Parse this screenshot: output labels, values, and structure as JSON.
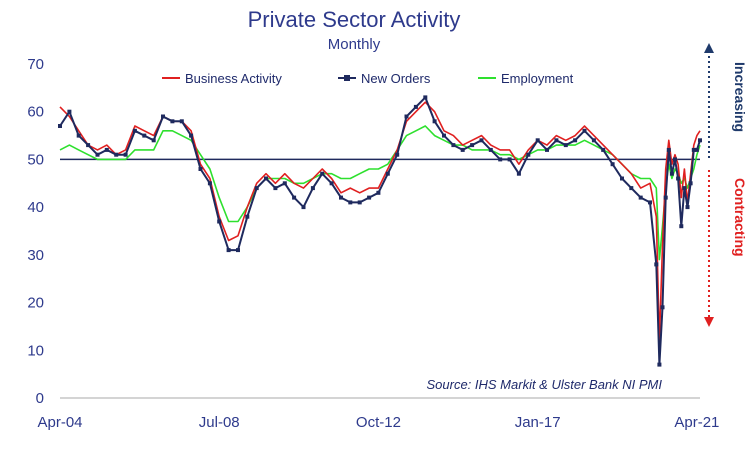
{
  "chart_data": {
    "type": "line",
    "title": "Private Sector Activity",
    "subtitle": "Monthly",
    "source": "Source: IHS Markit & Ulster Bank NI PMI",
    "x_tick_labels": [
      "Apr-04",
      "Jul-08",
      "Oct-12",
      "Jan-17",
      "Apr-21"
    ],
    "y_ticks": [
      0,
      10,
      20,
      30,
      40,
      50,
      60,
      70
    ],
    "ylim": [
      0,
      70
    ],
    "x_range": [
      "Apr-04",
      "May-21"
    ],
    "reference_line": 50,
    "grid": false,
    "legend_placement": "top",
    "annotations": {
      "up": "Increasing",
      "down": "Contracting"
    },
    "colors": {
      "axis": "#2e3a8c",
      "up": "#1f3a6b",
      "down": "#e02020"
    },
    "series": [
      {
        "name": "Business Activity",
        "color": "#e02020",
        "marker": "none",
        "x": [
          "Apr-04",
          "Jul-04",
          "Oct-04",
          "Jan-05",
          "Apr-05",
          "Jul-05",
          "Oct-05",
          "Jan-06",
          "Apr-06",
          "Jul-06",
          "Oct-06",
          "Jan-07",
          "Apr-07",
          "Jul-07",
          "Oct-07",
          "Jan-08",
          "Apr-08",
          "Jul-08",
          "Oct-08",
          "Jan-09",
          "Apr-09",
          "Jul-09",
          "Oct-09",
          "Jan-10",
          "Apr-10",
          "Jul-10",
          "Oct-10",
          "Jan-11",
          "Apr-11",
          "Jul-11",
          "Oct-11",
          "Jan-12",
          "Apr-12",
          "Jul-12",
          "Oct-12",
          "Jan-13",
          "Apr-13",
          "Jul-13",
          "Oct-13",
          "Jan-14",
          "Apr-14",
          "Jul-14",
          "Oct-14",
          "Jan-15",
          "Apr-15",
          "Jul-15",
          "Oct-15",
          "Jan-16",
          "Apr-16",
          "Jul-16",
          "Oct-16",
          "Jan-17",
          "Apr-17",
          "Jul-17",
          "Oct-17",
          "Jan-18",
          "Apr-18",
          "Jul-18",
          "Oct-18",
          "Jan-19",
          "Apr-19",
          "Jul-19",
          "Oct-19",
          "Jan-20",
          "Mar-20",
          "Apr-20",
          "May-20",
          "Jun-20",
          "Jul-20",
          "Aug-20",
          "Sep-20",
          "Oct-20",
          "Nov-20",
          "Dec-20",
          "Jan-21",
          "Feb-21",
          "Mar-21",
          "Apr-21",
          "May-21"
        ],
        "values": [
          61,
          59,
          56,
          53,
          52,
          53,
          51,
          52,
          57,
          56,
          55,
          59,
          58,
          58,
          56,
          49,
          46,
          38,
          33,
          34,
          40,
          45,
          47,
          45,
          47,
          45,
          44,
          46,
          48,
          46,
          43,
          44,
          43,
          44,
          44,
          48,
          52,
          58,
          60,
          62,
          60,
          56,
          55,
          53,
          54,
          55,
          53,
          52,
          52,
          49,
          52,
          54,
          53,
          55,
          54,
          55,
          57,
          55,
          53,
          51,
          49,
          47,
          44,
          45,
          38,
          12,
          32,
          48,
          54,
          49,
          51,
          49,
          42,
          48,
          41,
          47,
          53,
          55,
          56
        ]
      },
      {
        "name": "New Orders",
        "color": "#1f2a5e",
        "marker": "square",
        "x": [
          "Apr-04",
          "Jul-04",
          "Oct-04",
          "Jan-05",
          "Apr-05",
          "Jul-05",
          "Oct-05",
          "Jan-06",
          "Apr-06",
          "Jul-06",
          "Oct-06",
          "Jan-07",
          "Apr-07",
          "Jul-07",
          "Oct-07",
          "Jan-08",
          "Apr-08",
          "Jul-08",
          "Oct-08",
          "Jan-09",
          "Apr-09",
          "Jul-09",
          "Oct-09",
          "Jan-10",
          "Apr-10",
          "Jul-10",
          "Oct-10",
          "Jan-11",
          "Apr-11",
          "Jul-11",
          "Oct-11",
          "Jan-12",
          "Apr-12",
          "Jul-12",
          "Oct-12",
          "Jan-13",
          "Apr-13",
          "Jul-13",
          "Oct-13",
          "Jan-14",
          "Apr-14",
          "Jul-14",
          "Oct-14",
          "Jan-15",
          "Apr-15",
          "Jul-15",
          "Oct-15",
          "Jan-16",
          "Apr-16",
          "Jul-16",
          "Oct-16",
          "Jan-17",
          "Apr-17",
          "Jul-17",
          "Oct-17",
          "Jan-18",
          "Apr-18",
          "Jul-18",
          "Oct-18",
          "Jan-19",
          "Apr-19",
          "Jul-19",
          "Oct-19",
          "Jan-20",
          "Mar-20",
          "Apr-20",
          "May-20",
          "Jun-20",
          "Jul-20",
          "Aug-20",
          "Sep-20",
          "Oct-20",
          "Nov-20",
          "Dec-20",
          "Jan-21",
          "Feb-21",
          "Mar-21",
          "Apr-21",
          "May-21"
        ],
        "values": [
          57,
          60,
          55,
          53,
          51,
          52,
          51,
          51,
          56,
          55,
          54,
          59,
          58,
          58,
          55,
          48,
          45,
          37,
          31,
          31,
          38,
          44,
          46,
          44,
          45,
          42,
          40,
          44,
          47,
          45,
          42,
          41,
          41,
          42,
          43,
          47,
          51,
          59,
          61,
          63,
          58,
          55,
          53,
          52,
          53,
          54,
          52,
          50,
          50,
          47,
          51,
          54,
          52,
          54,
          53,
          54,
          56,
          54,
          52,
          49,
          46,
          44,
          42,
          41,
          28,
          7,
          19,
          42,
          52,
          47,
          50,
          46,
          36,
          44,
          40,
          45,
          52,
          52,
          54
        ]
      },
      {
        "name": "Employment",
        "color": "#2ee02e",
        "marker": "none",
        "x": [
          "Apr-04",
          "Jul-04",
          "Oct-04",
          "Jan-05",
          "Apr-05",
          "Jul-05",
          "Oct-05",
          "Jan-06",
          "Apr-06",
          "Jul-06",
          "Oct-06",
          "Jan-07",
          "Apr-07",
          "Jul-07",
          "Oct-07",
          "Jan-08",
          "Apr-08",
          "Jul-08",
          "Oct-08",
          "Jan-09",
          "Apr-09",
          "Jul-09",
          "Oct-09",
          "Jan-10",
          "Apr-10",
          "Jul-10",
          "Oct-10",
          "Jan-11",
          "Apr-11",
          "Jul-11",
          "Oct-11",
          "Jan-12",
          "Apr-12",
          "Jul-12",
          "Oct-12",
          "Jan-13",
          "Apr-13",
          "Jul-13",
          "Oct-13",
          "Jan-14",
          "Apr-14",
          "Jul-14",
          "Oct-14",
          "Jan-15",
          "Apr-15",
          "Jul-15",
          "Oct-15",
          "Jan-16",
          "Apr-16",
          "Jul-16",
          "Oct-16",
          "Jan-17",
          "Apr-17",
          "Jul-17",
          "Oct-17",
          "Jan-18",
          "Apr-18",
          "Jul-18",
          "Oct-18",
          "Jan-19",
          "Apr-19",
          "Jul-19",
          "Oct-19",
          "Jan-20",
          "Mar-20",
          "Apr-20",
          "May-20",
          "Jun-20",
          "Jul-20",
          "Aug-20",
          "Sep-20",
          "Oct-20",
          "Nov-20",
          "Dec-20",
          "Jan-21",
          "Feb-21",
          "Mar-21",
          "Apr-21",
          "May-21"
        ],
        "values": [
          52,
          53,
          52,
          51,
          50,
          50,
          50,
          50,
          52,
          52,
          52,
          56,
          56,
          55,
          54,
          51,
          48,
          42,
          37,
          37,
          40,
          44,
          46,
          46,
          46,
          45,
          45,
          46,
          47,
          47,
          46,
          46,
          47,
          48,
          48,
          49,
          52,
          55,
          56,
          57,
          55,
          54,
          53,
          53,
          52,
          52,
          52,
          51,
          51,
          50,
          51,
          52,
          52,
          53,
          53,
          53,
          54,
          53,
          52,
          51,
          49,
          47,
          46,
          46,
          44,
          29,
          36,
          44,
          49,
          46,
          48,
          47,
          45,
          46,
          44,
          46,
          48,
          51,
          53
        ]
      }
    ]
  }
}
